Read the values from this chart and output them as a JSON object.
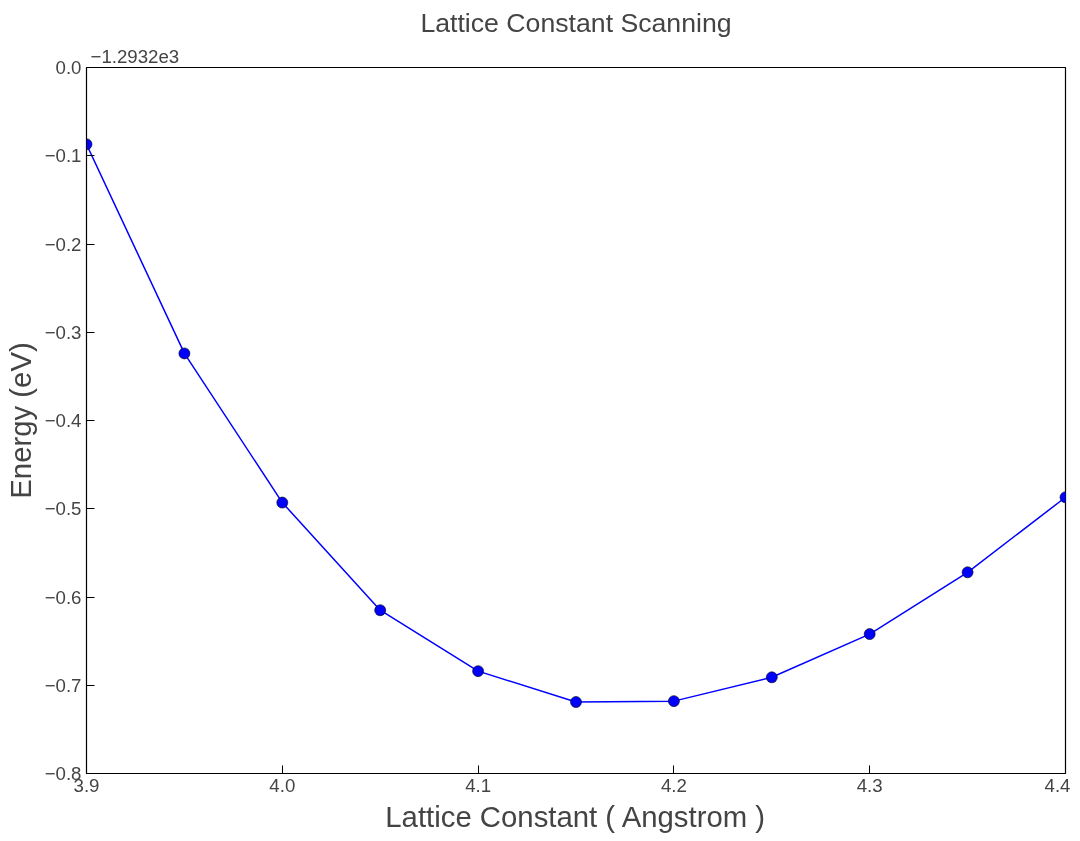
{
  "chart_data": {
    "type": "line",
    "title": "Lattice Constant Scanning",
    "xlabel": "Lattice Constant ( Angstrom )",
    "ylabel": "Energy (eV)",
    "annotations": [
      "−1.2932e3"
    ],
    "x": [
      3.9,
      3.95,
      4.0,
      4.05,
      4.1,
      4.15,
      4.2,
      4.25,
      4.3,
      4.35,
      4.4
    ],
    "series": [
      {
        "color": "#0000ff",
        "values": [
          -0.087,
          -0.324,
          -0.493,
          -0.615,
          -0.684,
          -0.719,
          -0.718,
          -0.691,
          -0.642,
          -0.572,
          -0.487
        ]
      }
    ],
    "xlim": [
      3.9,
      4.4
    ],
    "ylim": [
      -0.8,
      0.0
    ],
    "xticks": [
      3.9,
      {
        "value": 4.0,
        "label": "4.0"
      },
      4.1,
      4.2,
      4.3,
      4.4
    ],
    "yticks": [
      {
        "value": -0.8,
        "label": "−0.8"
      },
      {
        "value": -0.7,
        "label": "−0.7"
      },
      {
        "value": -0.6,
        "label": "−0.6"
      },
      {
        "value": -0.5,
        "label": "−0.5"
      },
      {
        "value": -0.4,
        "label": "−0.4"
      },
      {
        "value": -0.3,
        "label": "−0.3"
      },
      {
        "value": -0.2,
        "label": "−0.2"
      },
      {
        "value": -0.1,
        "label": "−0.1"
      },
      {
        "value": 0.0,
        "label": "0.0"
      }
    ],
    "grid": false,
    "marker": "circle",
    "line_style": "solid"
  }
}
